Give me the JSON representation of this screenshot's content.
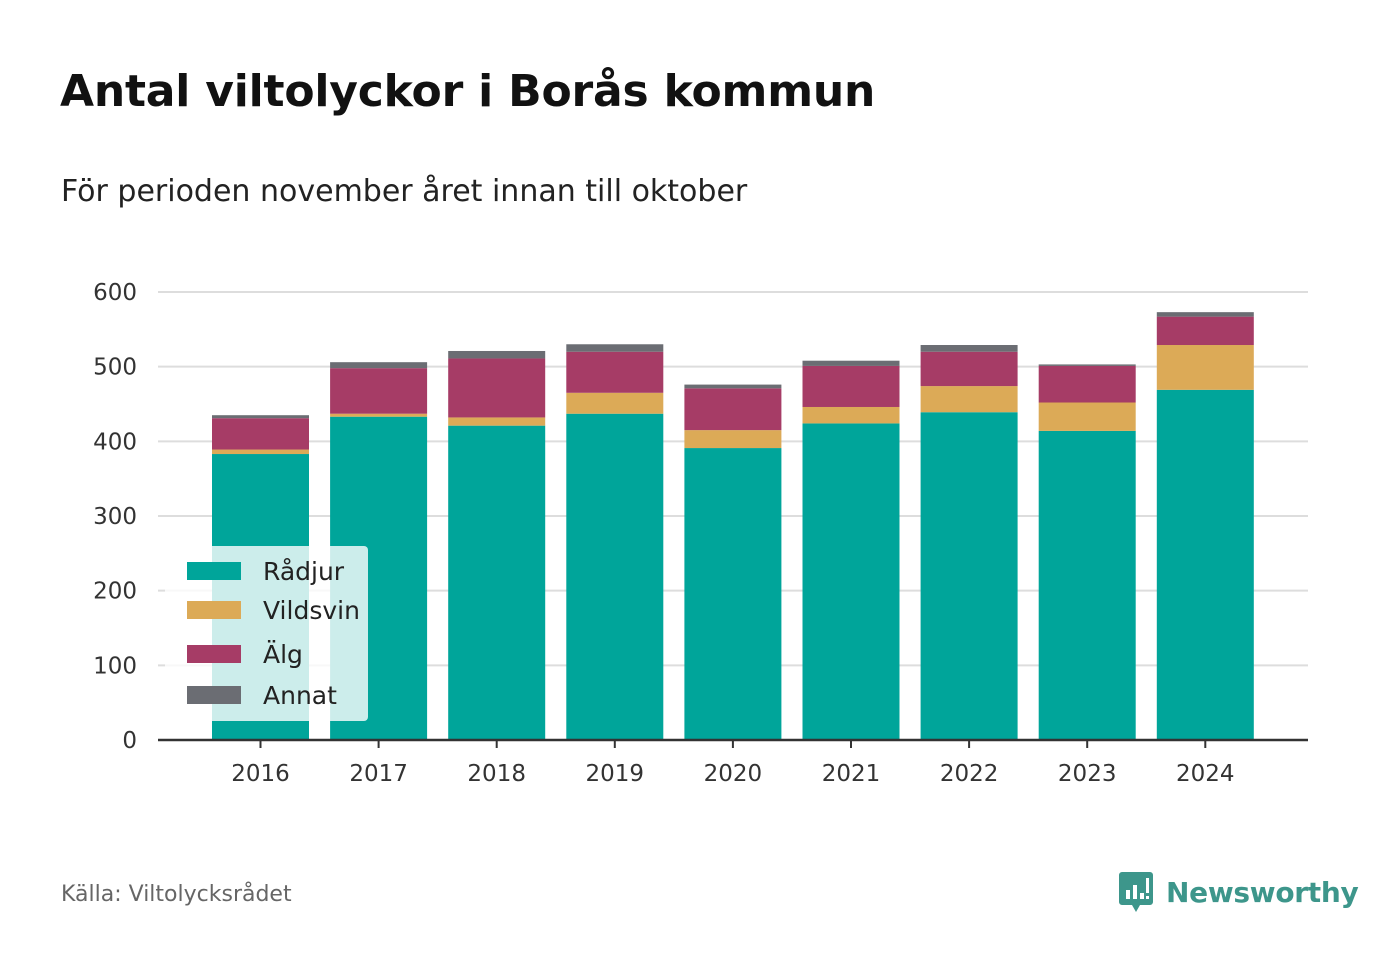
{
  "header": {
    "title": "Antal viltolyckor i Borås kommun",
    "subtitle": "För perioden november året innan till oktober"
  },
  "footer": {
    "source": "Källa: Viltolycksrådet",
    "brand": "Newsworthy"
  },
  "colors": {
    "radjur": "#00a59a",
    "vildsvin": "#dcaa57",
    "alg": "#a63c66",
    "annat": "#6b6d73",
    "grid": "#dddddd",
    "axis": "#333333",
    "brand": "#3d968b"
  },
  "chart_data": {
    "type": "bar",
    "stacked": true,
    "title": "Antal viltolyckor i Borås kommun",
    "subtitle": "För perioden november året innan till oktober",
    "categories": [
      "2016",
      "2017",
      "2018",
      "2019",
      "2020",
      "2021",
      "2022",
      "2023",
      "2024"
    ],
    "series": [
      {
        "name": "Rådjur",
        "color": "#00a59a",
        "values": [
          383,
          433,
          421,
          437,
          391,
          424,
          439,
          414,
          469
        ]
      },
      {
        "name": "Vildsvin",
        "color": "#dcaa57",
        "values": [
          6,
          4,
          11,
          28,
          24,
          22,
          35,
          38,
          60
        ]
      },
      {
        "name": "Älg",
        "color": "#a63c66",
        "values": [
          42,
          61,
          79,
          55,
          56,
          55,
          46,
          49,
          38
        ]
      },
      {
        "name": "Annat",
        "color": "#6b6d73",
        "values": [
          4,
          8,
          10,
          10,
          5,
          7,
          9,
          2,
          6
        ]
      }
    ],
    "yticks": [
      0,
      100,
      200,
      300,
      400,
      500,
      600
    ],
    "ylim": [
      0,
      600
    ],
    "xlabel": "",
    "ylabel": "",
    "grid": true,
    "legend_position": "bottom-left"
  },
  "legend": {
    "items": [
      {
        "label": "Rådjur",
        "color": "#00a59a"
      },
      {
        "label": "Vildsvin",
        "color": "#dcaa57"
      },
      {
        "label": "Älg",
        "color": "#a63c66"
      },
      {
        "label": "Annat",
        "color": "#6b6d73"
      }
    ]
  }
}
